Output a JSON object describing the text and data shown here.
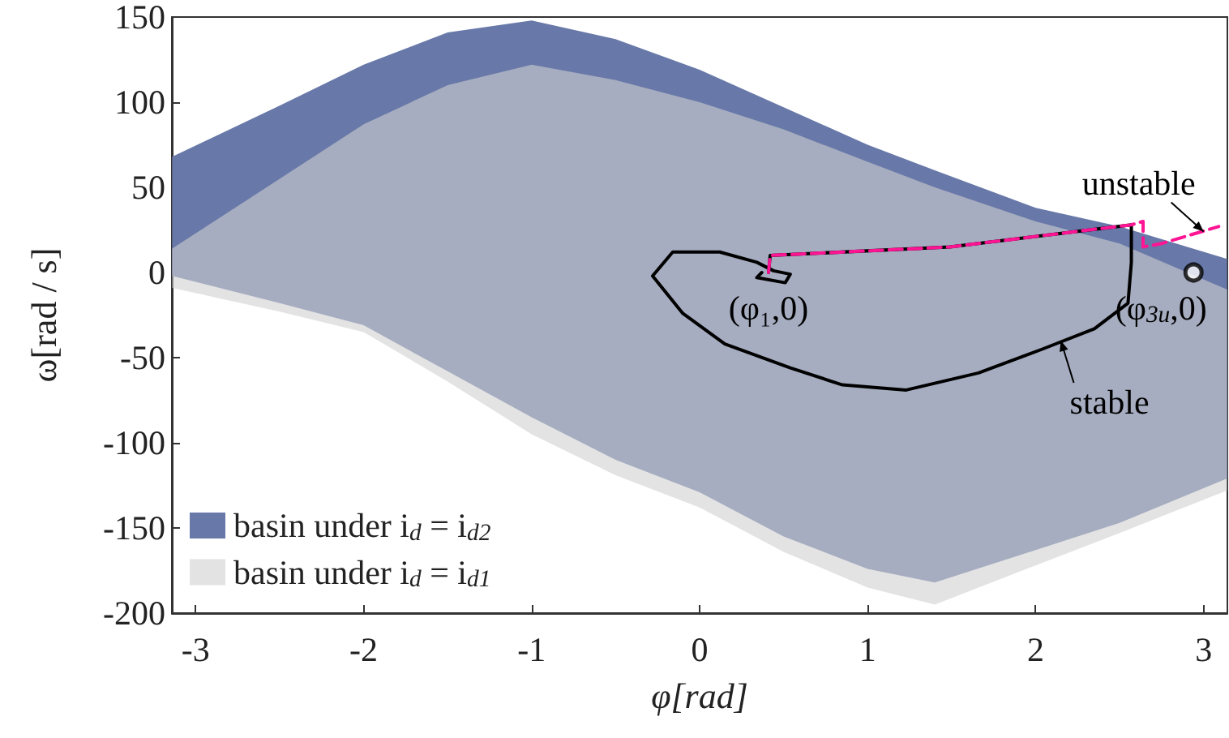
{
  "chart_data": {
    "type": "area",
    "xlabel": "φ[rad]",
    "ylabel": "ω[rad / s]",
    "x": [
      -3.14,
      -2.5,
      -2,
      -1.5,
      -1,
      -0.5,
      0,
      0.5,
      1,
      1.4,
      2,
      2.5,
      3.14
    ],
    "series": [
      {
        "name": "basin under i$_{d}$ = i$_{d2}$",
        "color": "#6878a8",
        "values": [
          null,
          null,
          null,
          null,
          null,
          null,
          null,
          null,
          null,
          null,
          null,
          null,
          null
        ],
        "upper": [
          68,
          98,
          122,
          141,
          148,
          137,
          119,
          97,
          75,
          60,
          38,
          27,
          8
        ],
        "lower": [
          -2,
          -18,
          -31,
          -58,
          -85,
          -110,
          -129,
          -155,
          -174,
          -182,
          -163,
          -147,
          -121
        ]
      },
      {
        "name": "basin under i$_{d}$ = i$_{d1}$",
        "color": "#d0d0d0",
        "values": [
          null,
          null,
          null,
          null,
          null,
          null,
          null,
          null,
          null,
          null,
          null,
          null,
          null
        ],
        "upper": [
          14,
          55,
          87,
          110,
          122,
          113,
          100,
          84,
          65,
          50,
          30,
          17,
          -10
        ],
        "lower": [
          -9,
          -23,
          -35,
          -64,
          -95,
          -119,
          -138,
          -164,
          -185,
          -195,
          -172,
          -153,
          -128
        ]
      },
      {
        "type": "line",
        "color": "#000000",
        "line_style": "solid",
        "x": [
          0.41,
          0.42,
          1.49,
          2.57,
          2.57,
          2.55,
          2.35,
          2.04,
          1.66,
          1.23,
          0.85,
          0.54,
          0.15,
          -0.1,
          -0.28,
          -0.16,
          0.12,
          0.34,
          0.44,
          0.54,
          0.51,
          0.34,
          0.37
        ],
        "values": [
          0,
          10,
          15,
          28,
          6,
          -18,
          -33,
          -45,
          -59,
          -69,
          -66,
          -56,
          -42,
          -24,
          -2,
          12,
          12,
          6,
          1,
          -1,
          -6,
          -3,
          0
        ]
      },
      {
        "type": "line",
        "color": "#ff1493",
        "line_style": "dashed",
        "x": [
          0.41,
          0.42,
          1.49,
          2.57,
          2.64,
          2.64,
          2.75,
          3.09
        ],
        "values": [
          0,
          10,
          15,
          28,
          30,
          15,
          17,
          27
        ]
      },
      {
        "type": "scatter",
        "color": "#000000",
        "marker": "circle",
        "x": [
          2.94
        ],
        "values": [
          0
        ]
      }
    ],
    "xlim": [
      -3.1416,
      3.1416
    ],
    "ylim": [
      -200,
      150
    ],
    "xticks": [
      -3,
      -2,
      -1,
      0,
      1,
      2,
      3
    ],
    "yticks": [
      -200,
      -150,
      -100,
      -50,
      0,
      50,
      100,
      150
    ],
    "grid": false,
    "legend": "bottom left",
    "annotations": [
      {
        "text": "(φ₁,0)",
        "x": 0.41,
        "y": 0
      },
      {
        "text": "(φ$_{3u}$,0)",
        "x": 2.94,
        "y": 0
      },
      {
        "text": "unstable",
        "x": 3.0,
        "y": 24
      },
      {
        "text": "stable",
        "x": 2.15,
        "y": -40
      }
    ]
  }
}
